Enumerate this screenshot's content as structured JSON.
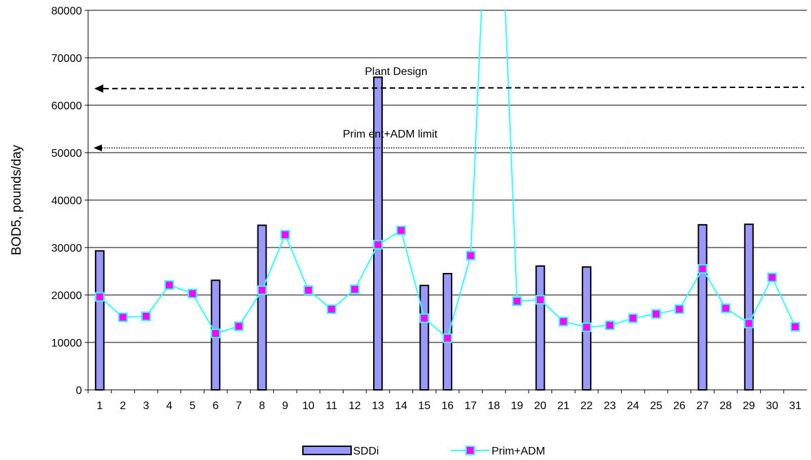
{
  "chart_data": {
    "type": "bar",
    "title": "",
    "xlabel": "",
    "ylabel": "BOD5, pounds/day",
    "ylim": [
      0,
      80000
    ],
    "yticks": [
      0,
      10000,
      20000,
      30000,
      40000,
      50000,
      60000,
      70000,
      80000
    ],
    "grid": "horizontal",
    "categories": [
      "1",
      "2",
      "3",
      "4",
      "5",
      "6",
      "7",
      "8",
      "9",
      "10",
      "11",
      "12",
      "13",
      "14",
      "15",
      "16",
      "17",
      "18",
      "19",
      "20",
      "21",
      "22",
      "23",
      "24",
      "25",
      "26",
      "27",
      "28",
      "29",
      "30",
      "31"
    ],
    "series": [
      {
        "name": "SDDi",
        "type": "bar",
        "color": "#9999ff",
        "values": [
          29300,
          null,
          null,
          null,
          null,
          23100,
          null,
          34700,
          null,
          null,
          null,
          null,
          65900,
          null,
          22000,
          24500,
          null,
          null,
          null,
          26100,
          null,
          25900,
          null,
          null,
          null,
          null,
          34800,
          null,
          34900,
          null,
          null
        ]
      },
      {
        "name": "Prim+ADM",
        "type": "line",
        "color": "#33ffff",
        "marker_color": "#ff00ff",
        "values": [
          19600,
          15300,
          15500,
          22100,
          20300,
          11900,
          13400,
          21000,
          32700,
          21000,
          17000,
          21200,
          30600,
          33600,
          15100,
          10900,
          28300,
          140000,
          18700,
          19000,
          14400,
          13200,
          13600,
          15100,
          16000,
          17000,
          25500,
          17200,
          14000,
          23700,
          13300
        ]
      }
    ],
    "annotations": [
      {
        "text": "Plant Design",
        "y": 63500,
        "style": "dashed-arrow"
      },
      {
        "text": "Prim ent+ADM limit",
        "y": 51000,
        "style": "dotted-arrow"
      }
    ],
    "legend_position": "bottom"
  }
}
